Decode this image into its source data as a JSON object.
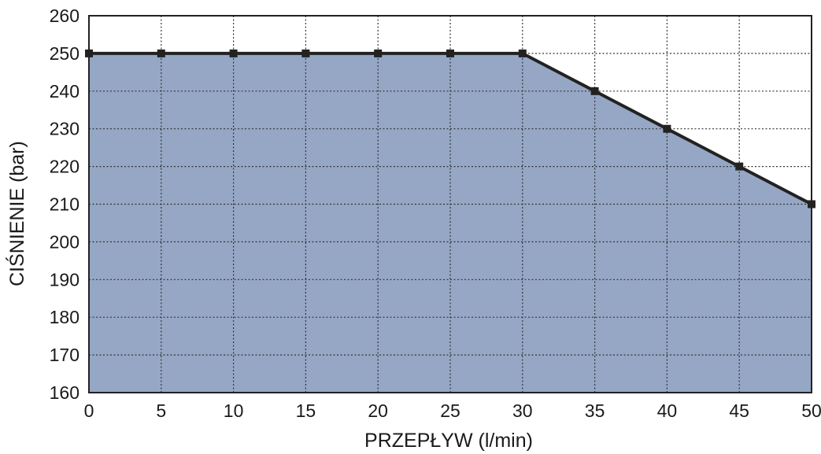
{
  "chart_data": {
    "type": "area",
    "title": "",
    "xlabel": "PRZEPŁYW (l/min)",
    "ylabel": "CIŚNIENIE (bar)",
    "xlim": [
      0,
      50
    ],
    "ylim": [
      160,
      260
    ],
    "x_ticks": [
      0,
      5,
      10,
      15,
      20,
      25,
      30,
      35,
      40,
      45,
      50
    ],
    "y_ticks": [
      160,
      170,
      180,
      190,
      200,
      210,
      220,
      230,
      240,
      250,
      260
    ],
    "grid": true,
    "legend": "none",
    "series": [
      {
        "x": [
          0,
          5,
          10,
          15,
          20,
          25,
          30,
          35,
          40,
          45,
          50
        ],
        "y": [
          250,
          250,
          250,
          250,
          250,
          250,
          250,
          240,
          230,
          220,
          210
        ]
      }
    ],
    "colors": {
      "fill": "#95a7c5",
      "line": "#222222",
      "marker": "#222222",
      "grid": "#333333",
      "axis": "#222222"
    }
  }
}
